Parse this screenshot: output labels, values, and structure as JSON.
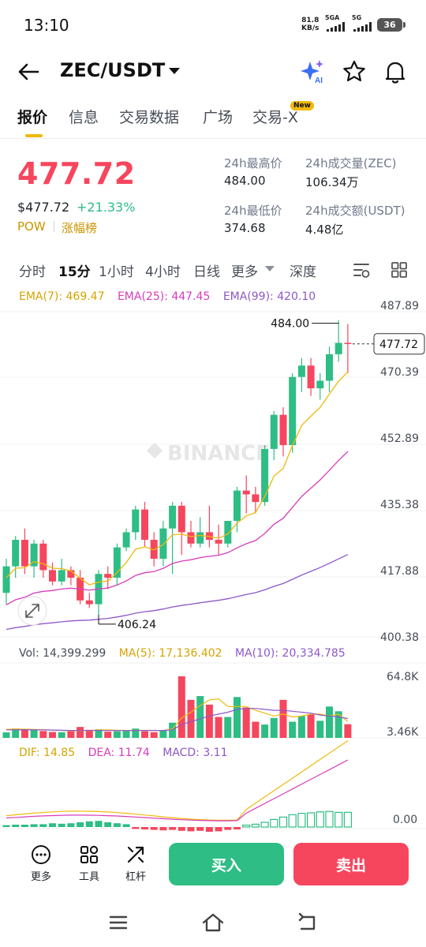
{
  "status": {
    "time": "13:10",
    "speed_value": "81.8",
    "speed_unit": "KB/s",
    "net1": "5GA",
    "net2": "5G",
    "battery": "36"
  },
  "header": {
    "pair": "ZEC/USDT",
    "icons": [
      "back-arrow-icon",
      "ai-sparkle-icon",
      "star-icon",
      "bell-icon"
    ]
  },
  "tabs": [
    {
      "label": "报价",
      "active": true
    },
    {
      "label": "信息",
      "active": false
    },
    {
      "label": "交易数据",
      "active": false
    },
    {
      "label": "广场",
      "active": false
    },
    {
      "label": "交易-X",
      "active": false
    }
  ],
  "new_badge": "New",
  "ticker": {
    "last_price": "477.72",
    "usd_price": "$477.72",
    "change": "+21.33%",
    "tag1": "POW",
    "tag2": "涨幅榜",
    "high_label": "24h最高价",
    "high_value": "484.00",
    "low_label": "24h最低价",
    "low_value": "374.68",
    "vol_label": "24h成交量(ZEC)",
    "vol_value": "106.34万",
    "amt_label": "24h成交额(USDT)",
    "amt_value": "4.48亿"
  },
  "intervals": {
    "items": [
      "分时",
      "15分",
      "1小时",
      "4小时",
      "日线",
      "更多",
      "深度"
    ],
    "active": "15分"
  },
  "indicators": {
    "ema7": "EMA(7): 469.47",
    "ema25": "EMA(25): 447.45",
    "ema99": "EMA(99): 420.10",
    "vol": "Vol: 14,399.299",
    "ma5": "MA(5): 17,136.402",
    "ma10": "MA(10): 20,334.785",
    "dif": "DIF: 14.85",
    "dea": "DEA: 11.74",
    "macd": "MACD: 3.11"
  },
  "watermark": "BINANCE",
  "colors": {
    "up": "#2ebd85",
    "down": "#f6465d",
    "ema7": "#f0b90b",
    "ema25": "#d63cbd",
    "ema99": "#8e57c9",
    "accent": "#f0b90b"
  },
  "chart_data": {
    "type": "candlestick",
    "price_axis_labels": [
      "487.89",
      "470.39",
      "452.89",
      "435.38",
      "417.88",
      "400.38"
    ],
    "price_axis_values": [
      487.89,
      470.39,
      452.89,
      435.38,
      417.88,
      400.38
    ],
    "volume_axis_labels": [
      "64.8K",
      "3.46K"
    ],
    "volume_axis_values": [
      64800,
      3460
    ],
    "macd_axis_labels": [
      "0.00"
    ],
    "high_marker": "484.00",
    "low_marker": "406.24",
    "current_price_tag": "477.72",
    "candles": [
      {
        "o": 412,
        "h": 421,
        "l": 409,
        "c": 419
      },
      {
        "o": 419,
        "h": 427,
        "l": 416,
        "c": 426
      },
      {
        "o": 426,
        "h": 429,
        "l": 417,
        "c": 419
      },
      {
        "o": 419,
        "h": 426,
        "l": 416,
        "c": 425
      },
      {
        "o": 425,
        "h": 426,
        "l": 416,
        "c": 418
      },
      {
        "o": 418,
        "h": 420,
        "l": 414,
        "c": 415
      },
      {
        "o": 415,
        "h": 421,
        "l": 414,
        "c": 418
      },
      {
        "o": 418,
        "h": 419,
        "l": 414,
        "c": 416
      },
      {
        "o": 416,
        "h": 418,
        "l": 409,
        "c": 410
      },
      {
        "o": 410,
        "h": 412,
        "l": 408,
        "c": 409
      },
      {
        "o": 409,
        "h": 418,
        "l": 406.24,
        "c": 417
      },
      {
        "o": 417,
        "h": 419,
        "l": 413,
        "c": 416
      },
      {
        "o": 416,
        "h": 425,
        "l": 414,
        "c": 424
      },
      {
        "o": 424,
        "h": 429,
        "l": 423,
        "c": 428
      },
      {
        "o": 428,
        "h": 435,
        "l": 426,
        "c": 434
      },
      {
        "o": 434,
        "h": 436,
        "l": 424,
        "c": 426
      },
      {
        "o": 426,
        "h": 428,
        "l": 419,
        "c": 421
      },
      {
        "o": 421,
        "h": 431,
        "l": 419,
        "c": 429
      },
      {
        "o": 429,
        "h": 436,
        "l": 417,
        "c": 435
      },
      {
        "o": 435,
        "h": 436,
        "l": 422,
        "c": 428
      },
      {
        "o": 428,
        "h": 431,
        "l": 424,
        "c": 425
      },
      {
        "o": 425,
        "h": 432,
        "l": 424,
        "c": 428
      },
      {
        "o": 428,
        "h": 435,
        "l": 424,
        "c": 426
      },
      {
        "o": 426,
        "h": 430,
        "l": 422,
        "c": 425
      },
      {
        "o": 425,
        "h": 431,
        "l": 424,
        "c": 431
      },
      {
        "o": 431,
        "h": 440,
        "l": 428,
        "c": 439
      },
      {
        "o": 439,
        "h": 443,
        "l": 433,
        "c": 438
      },
      {
        "o": 438,
        "h": 440,
        "l": 433,
        "c": 436
      },
      {
        "o": 436,
        "h": 451,
        "l": 435,
        "c": 450
      },
      {
        "o": 450,
        "h": 460,
        "l": 447,
        "c": 459
      },
      {
        "o": 459,
        "h": 461,
        "l": 448,
        "c": 451
      },
      {
        "o": 451,
        "h": 470,
        "l": 449,
        "c": 469
      },
      {
        "o": 469,
        "h": 474,
        "l": 465,
        "c": 472
      },
      {
        "o": 472,
        "h": 474,
        "l": 464,
        "c": 466
      },
      {
        "o": 466,
        "h": 470,
        "l": 463,
        "c": 468
      },
      {
        "o": 468,
        "h": 477,
        "l": 465,
        "c": 475
      },
      {
        "o": 475,
        "h": 484,
        "l": 473,
        "c": 478
      },
      {
        "o": 478,
        "h": 483,
        "l": 470,
        "c": 477.72
      }
    ],
    "volumes": [
      5800,
      9800,
      9000,
      8800,
      7200,
      6200,
      6000,
      7000,
      11500,
      8500,
      9000,
      6500,
      7000,
      8000,
      9800,
      7000,
      6000,
      7500,
      16000,
      64800,
      40000,
      44000,
      35000,
      22000,
      22000,
      43000,
      32000,
      17000,
      14000,
      21000,
      40000,
      17000,
      23000,
      25000,
      18000,
      33000,
      28000,
      14399
    ],
    "ma5": [
      9000,
      9200,
      9100,
      8800,
      8600,
      8100,
      7900,
      7400,
      7600,
      7600,
      8300,
      8400,
      8100,
      7800,
      8100,
      7900,
      7900,
      7700,
      9400,
      21000,
      27000,
      34000,
      40000,
      41000,
      33000,
      33000,
      33000,
      29000,
      26000,
      23000,
      25000,
      22000,
      23000,
      25000,
      25000,
      23000,
      25000,
      17136
    ],
    "ma10": [
      8500,
      8500,
      8600,
      8500,
      8400,
      8200,
      8000,
      7800,
      7800,
      7700,
      7700,
      7700,
      7700,
      7700,
      7800,
      7800,
      7800,
      7800,
      8500,
      14000,
      17000,
      20000,
      23000,
      25000,
      27000,
      30000,
      31000,
      31000,
      30000,
      29000,
      29000,
      28000,
      27000,
      26000,
      24000,
      23000,
      22000,
      20334
    ]
  }
}
